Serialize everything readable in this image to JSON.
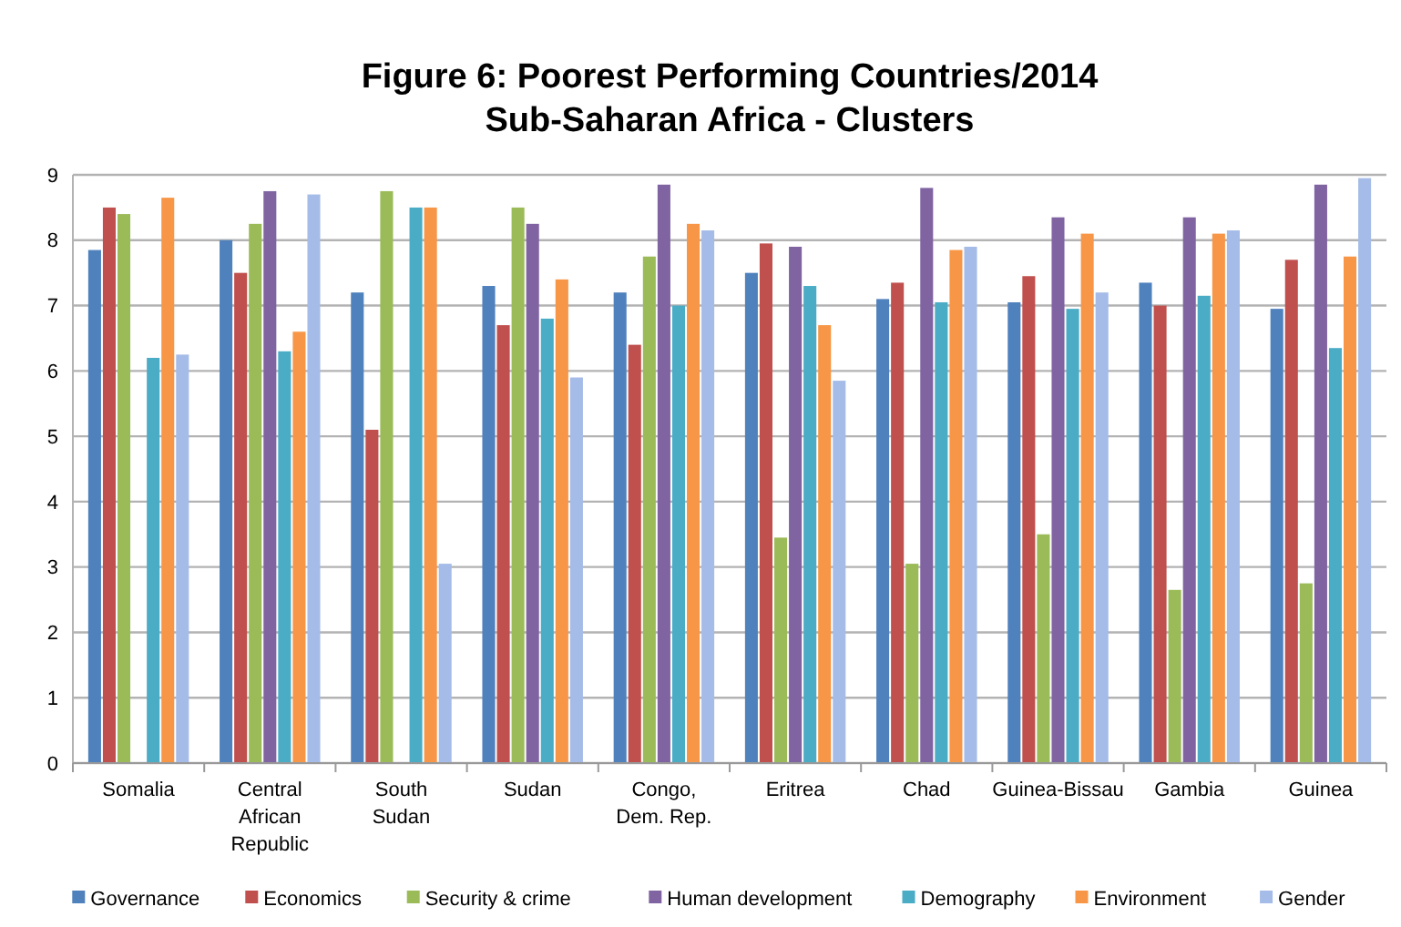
{
  "chart_data": {
    "type": "bar",
    "title": "Figure 6: Poorest Performing Countries/2014",
    "subtitle": "Sub-Saharan Africa - Clusters",
    "categories": [
      "Somalia",
      "Central African Republic",
      "South Sudan",
      "Sudan",
      "Congo, Dem. Rep.",
      "Eritrea",
      "Chad",
      "Guinea-Bissau",
      "Gambia",
      "Guinea"
    ],
    "series": [
      {
        "name": "Governance",
        "color": "#4f81bd",
        "values": [
          7.85,
          8.0,
          7.2,
          7.3,
          7.2,
          7.5,
          7.1,
          7.05,
          7.35,
          6.95
        ]
      },
      {
        "name": "Economics",
        "color": "#c0504d",
        "values": [
          8.5,
          7.5,
          5.1,
          6.7,
          6.4,
          7.95,
          7.35,
          7.45,
          7.0,
          7.7
        ]
      },
      {
        "name": "Security & crime",
        "color": "#9bbb59",
        "values": [
          8.4,
          8.25,
          8.75,
          8.5,
          7.75,
          3.45,
          3.05,
          3.5,
          2.65,
          2.75
        ]
      },
      {
        "name": "Human development",
        "color": "#8064a2",
        "values": [
          null,
          8.75,
          null,
          8.25,
          8.85,
          7.9,
          8.8,
          8.35,
          8.35,
          8.85
        ]
      },
      {
        "name": "Demography",
        "color": "#4bacc6",
        "values": [
          6.2,
          6.3,
          8.5,
          6.8,
          7.0,
          7.3,
          7.05,
          6.95,
          7.15,
          6.35
        ]
      },
      {
        "name": "Environment",
        "color": "#f79646",
        "values": [
          8.65,
          6.6,
          8.5,
          7.4,
          8.25,
          6.7,
          7.85,
          8.1,
          8.1,
          7.75
        ]
      },
      {
        "name": "Gender",
        "color": "#a5bce8",
        "values": [
          6.25,
          8.7,
          3.05,
          5.9,
          8.15,
          5.85,
          7.9,
          7.2,
          8.15,
          8.95
        ]
      }
    ],
    "ylim": [
      0,
      9
    ],
    "yticks": [
      0,
      1,
      2,
      3,
      4,
      5,
      6,
      7,
      8,
      9
    ],
    "grid": "y",
    "legend": "bottom"
  }
}
